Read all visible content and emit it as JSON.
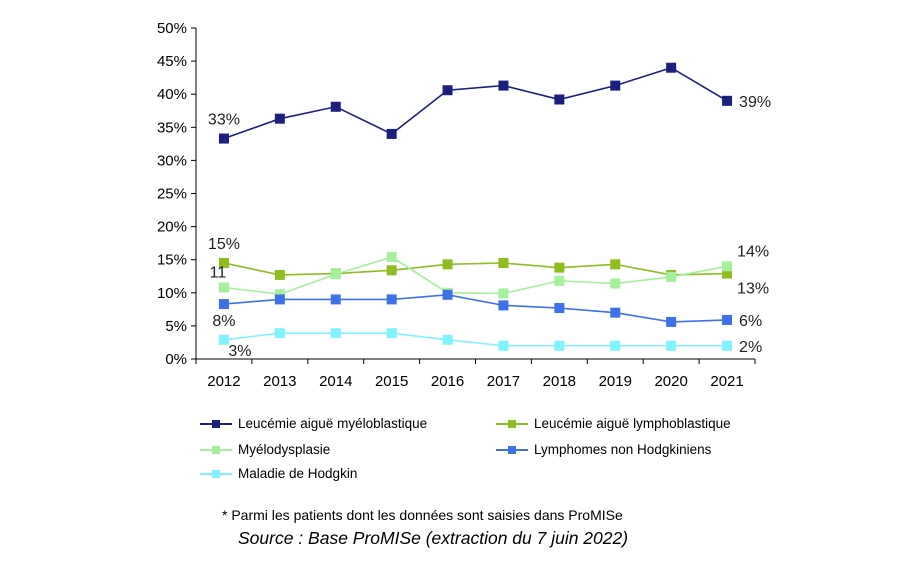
{
  "chart_data": {
    "type": "line",
    "categories": [
      "2012",
      "2013",
      "2014",
      "2015",
      "2016",
      "2017",
      "2018",
      "2019",
      "2020",
      "2021"
    ],
    "ylim": [
      0,
      50
    ],
    "yticks": [
      "0%",
      "5%",
      "10%",
      "15%",
      "20%",
      "25%",
      "30%",
      "35%",
      "40%",
      "45%",
      "50%"
    ],
    "grid": false,
    "legend_position": "bottom",
    "series": [
      {
        "name": "Leucémie aiguë myéloblastique",
        "color": "#1a1f80",
        "values": [
          33.3,
          36.3,
          38.1,
          34.0,
          40.6,
          41.3,
          39.2,
          41.3,
          44.0,
          39.0
        ]
      },
      {
        "name": "Leucémie aiguë lymphoblastique",
        "color": "#8fbc1f",
        "values": [
          14.5,
          12.7,
          12.9,
          13.4,
          14.3,
          14.5,
          13.8,
          14.3,
          12.7,
          12.9
        ]
      },
      {
        "name": "Myélodysplasie",
        "color": "#a5f09a",
        "values": [
          10.8,
          9.8,
          12.8,
          15.4,
          10.0,
          9.9,
          11.8,
          11.4,
          12.4,
          14.0
        ]
      },
      {
        "name": "Lymphomes non Hodgkiniens",
        "color": "#3d72e6",
        "values": [
          8.3,
          9.0,
          9.0,
          9.0,
          9.7,
          8.1,
          7.7,
          7.0,
          5.6,
          5.9
        ]
      },
      {
        "name": "Maladie de Hodgkin",
        "color": "#7ff4ff",
        "values": [
          2.9,
          3.9,
          3.9,
          3.9,
          2.9,
          2.0,
          2.0,
          2.0,
          2.0,
          2.0
        ]
      }
    ],
    "data_labels": [
      {
        "text": "33%",
        "series": 0,
        "point": 0,
        "side": "above"
      },
      {
        "text": "39%",
        "series": 0,
        "point": 9,
        "side": "right"
      },
      {
        "text": "15%",
        "series": 1,
        "point": 0,
        "side": "above"
      },
      {
        "text": "13%",
        "series": 1,
        "point": 9,
        "side": "right-below"
      },
      {
        "text": "11",
        "series": 2,
        "point": 0,
        "side": "above-left"
      },
      {
        "text": "14%",
        "series": 2,
        "point": 9,
        "side": "right-above"
      },
      {
        "text": "8%",
        "series": 3,
        "point": 0,
        "side": "below"
      },
      {
        "text": "6%",
        "series": 3,
        "point": 9,
        "side": "right"
      },
      {
        "text": "3%",
        "series": 4,
        "point": 0,
        "side": "below-right"
      },
      {
        "text": "2%",
        "series": 4,
        "point": 9,
        "side": "right"
      }
    ]
  },
  "legend": {
    "items": [
      {
        "label": "Leucémie aiguë myéloblastique",
        "color": "#1a1f80"
      },
      {
        "label": "Leucémie aiguë lymphoblastique",
        "color": "#8fbc1f"
      },
      {
        "label": "Myélodysplasie",
        "color": "#a5f09a"
      },
      {
        "label": "Lymphomes non Hodgkiniens",
        "color": "#3d72e6"
      },
      {
        "label": "Maladie de Hodgkin",
        "color": "#7ff4ff"
      }
    ]
  },
  "footnote": "* Parmi les patients dont les données sont saisies dans ProMISe",
  "source": "Source : Base ProMISe (extraction du 7 juin 2022)"
}
